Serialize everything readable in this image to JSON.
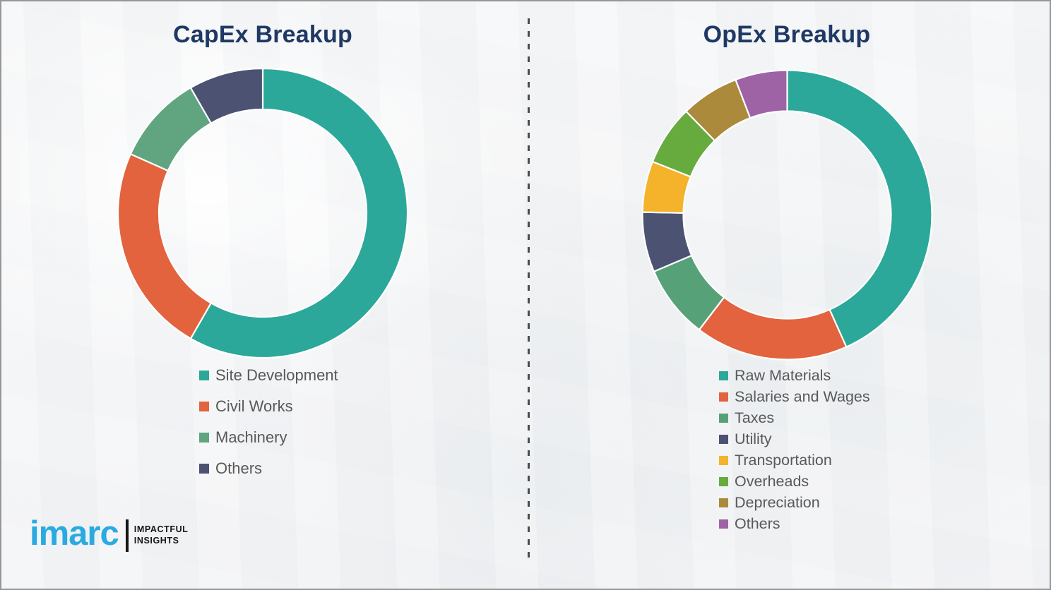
{
  "page": {
    "background_color": "#f3f4f5",
    "divider_color": "#4c4c4c",
    "title_color": "#1f3864",
    "legend_text_color": "#595959"
  },
  "chart_data": [
    {
      "type": "pie",
      "subtype": "donut",
      "title": "CapEx Breakup",
      "legend_position": "below-left",
      "categories": [
        "Site Development",
        "Civil Works",
        "Machinery",
        "Others"
      ],
      "values": [
        58.3,
        23.4,
        10.0,
        8.3
      ],
      "colors": [
        "#2ba89a",
        "#e2633e",
        "#60a480",
        "#4b5272"
      ],
      "start_angle_deg": 0,
      "direction": "clockwise",
      "units": "percent"
    },
    {
      "type": "pie",
      "subtype": "donut",
      "title": "OpEx Breakup",
      "legend_position": "below-left",
      "categories": [
        "Raw Materials",
        "Salaries and Wages",
        "Taxes",
        "Utility",
        "Transportation",
        "Overheads",
        "Depreciation",
        "Others"
      ],
      "values": [
        43.3,
        17.1,
        8.2,
        6.7,
        5.7,
        6.7,
        6.5,
        5.8
      ],
      "colors": [
        "#2ba89a",
        "#e2633e",
        "#57a179",
        "#4b5272",
        "#f4b32b",
        "#67aa3e",
        "#ac8a3c",
        "#9e63a5"
      ],
      "start_angle_deg": 0,
      "direction": "clockwise",
      "units": "percent"
    }
  ],
  "logo": {
    "word": "imarc",
    "tagline_line1": "IMPACTFUL",
    "tagline_line2": "INSIGHTS",
    "brand_color": "#29abe2"
  }
}
